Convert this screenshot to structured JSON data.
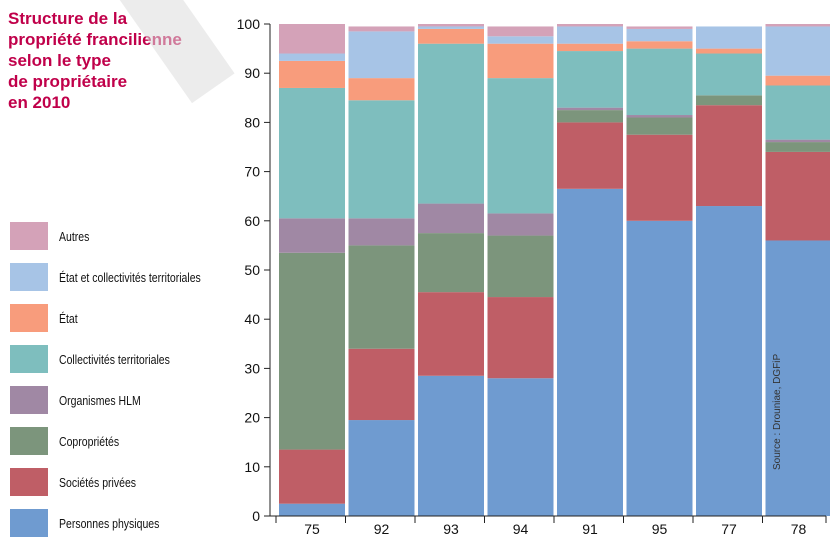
{
  "title_lines": [
    "Structure de la",
    "propriété francilienne",
    "selon le type",
    "de propriétaire",
    "en 2010"
  ],
  "source": "Source : Drouniae, DGFiP",
  "colors": {
    "title": "#c0004a",
    "Autres": "#d4a2b8",
    "Etat et collectivites territoriales": "#a7c4e6",
    "Etat": "#f89c7c",
    "Collectivites territoriales": "#7ebebe",
    "Organismes HLM": "#a088a4",
    "Coproprietes": "#7c957c",
    "Societes privees": "#bf5e66",
    "Personnes physiques": "#6f9bd0"
  },
  "legend": [
    {
      "label": "Autres",
      "color": "#d4a2b8"
    },
    {
      "label": "État et collectivités territoriales",
      "color": "#a7c4e6"
    },
    {
      "label": "État",
      "color": "#f89c7c"
    },
    {
      "label": "Collectivités territoriales",
      "color": "#7ebebe"
    },
    {
      "label": "Organismes HLM",
      "color": "#a088a4"
    },
    {
      "label": "Copropriétés",
      "color": "#7c957c"
    },
    {
      "label": "Sociétés privées",
      "color": "#bf5e66"
    },
    {
      "label": "Personnes physiques",
      "color": "#6f9bd0"
    }
  ],
  "chart_data": {
    "type": "bar",
    "stacked": true,
    "title": "Structure de la propriété francilienne selon le type de propriétaire en 2010",
    "categories": [
      "75",
      "92",
      "93",
      "94",
      "91",
      "95",
      "77",
      "78"
    ],
    "ylim": [
      0,
      100
    ],
    "yticks": [
      0,
      10,
      20,
      30,
      40,
      50,
      60,
      70,
      80,
      90,
      100
    ],
    "grid": false,
    "legend_position": "left",
    "series": [
      {
        "name": "Personnes physiques",
        "color": "#6f9bd0",
        "values": [
          2.5,
          19.5,
          28.5,
          28.0,
          66.5,
          60.0,
          63.0,
          56.0
        ]
      },
      {
        "name": "Sociétés privées",
        "color": "#bf5e66",
        "values": [
          11.0,
          14.5,
          17.0,
          16.5,
          13.5,
          17.5,
          20.5,
          18.0
        ]
      },
      {
        "name": "Copropriétés",
        "color": "#7c957c",
        "values": [
          40.0,
          21.0,
          12.0,
          12.5,
          2.5,
          3.5,
          2.0,
          2.0
        ]
      },
      {
        "name": "Organismes HLM",
        "color": "#a088a4",
        "values": [
          7.0,
          5.5,
          6.0,
          4.5,
          0.5,
          0.5,
          0.0,
          0.5
        ]
      },
      {
        "name": "Collectivités territoriales",
        "color": "#7ebebe",
        "values": [
          26.5,
          24.0,
          32.5,
          27.5,
          11.5,
          13.5,
          8.5,
          11.0
        ]
      },
      {
        "name": "État",
        "color": "#f89c7c",
        "values": [
          5.5,
          4.5,
          3.0,
          7.0,
          1.5,
          1.5,
          1.0,
          2.0
        ]
      },
      {
        "name": "État et collectivités territoriales",
        "color": "#a7c4e6",
        "values": [
          1.5,
          9.5,
          0.5,
          1.5,
          3.5,
          2.5,
          4.5,
          10.0
        ]
      },
      {
        "name": "Autres",
        "color": "#d4a2b8",
        "values": [
          6.0,
          1.0,
          0.5,
          2.0,
          0.5,
          0.5,
          0.0,
          0.5
        ]
      }
    ]
  }
}
